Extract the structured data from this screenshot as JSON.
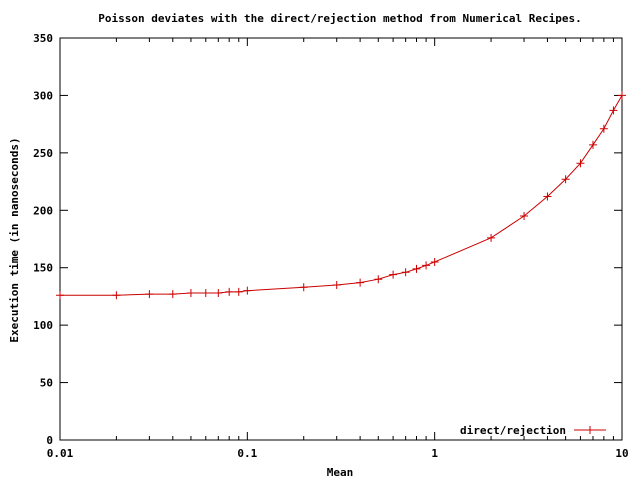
{
  "chart_data": {
    "type": "line",
    "title": "Poisson deviates with the direct/rejection method from Numerical Recipes.",
    "xlabel": "Mean",
    "ylabel": "Execution time (in nanoseconds)",
    "xscale": "log",
    "xlim": [
      0.01,
      10
    ],
    "ylim": [
      0,
      350
    ],
    "xticks": [
      {
        "value": 0.01,
        "label": "0.01"
      },
      {
        "value": 0.1,
        "label": "0.1"
      },
      {
        "value": 1,
        "label": "1"
      },
      {
        "value": 10,
        "label": "10"
      }
    ],
    "yticks": [
      {
        "value": 0,
        "label": "0"
      },
      {
        "value": 50,
        "label": "50"
      },
      {
        "value": 100,
        "label": "100"
      },
      {
        "value": 150,
        "label": "150"
      },
      {
        "value": 200,
        "label": "200"
      },
      {
        "value": 250,
        "label": "250"
      },
      {
        "value": 300,
        "label": "300"
      },
      {
        "value": 350,
        "label": "350"
      }
    ],
    "grid": false,
    "legend_position": "bottom-right",
    "series": [
      {
        "name": "direct/rejection",
        "color": "#cc0000",
        "marker": "plus",
        "x": [
          0.01,
          0.02,
          0.03,
          0.04,
          0.05,
          0.06,
          0.07,
          0.08,
          0.09,
          0.1,
          0.2,
          0.3,
          0.4,
          0.5,
          0.6,
          0.7,
          0.8,
          0.9,
          1,
          2,
          3,
          4,
          5,
          6,
          7,
          8,
          9,
          10
        ],
        "y": [
          126,
          126,
          127,
          127,
          128,
          128,
          128,
          129,
          129,
          130,
          133,
          135,
          137,
          140,
          144,
          146,
          149,
          152,
          155,
          176,
          195,
          212,
          227,
          241,
          257,
          271,
          287,
          300
        ]
      }
    ]
  }
}
